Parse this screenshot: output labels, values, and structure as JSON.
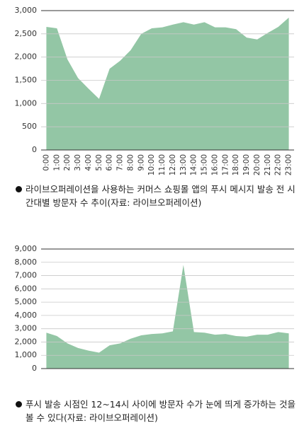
{
  "chart_data": [
    {
      "type": "area",
      "color": "#93c6a5",
      "categories": [
        "0:00",
        "1:00",
        "2:00",
        "3:00",
        "4:00",
        "5:00",
        "6:00",
        "7:00",
        "8:00",
        "9:00",
        "10:00",
        "11:00",
        "12:00",
        "13:00",
        "14:00",
        "15:00",
        "16:00",
        "17:00",
        "18:00",
        "19:00",
        "20:00",
        "21:00",
        "22:00",
        "23:00"
      ],
      "values": [
        2650,
        2620,
        1950,
        1550,
        1320,
        1100,
        1750,
        1920,
        2150,
        2500,
        2620,
        2640,
        2700,
        2750,
        2700,
        2750,
        2640,
        2640,
        2600,
        2420,
        2380,
        2520,
        2650,
        2850
      ],
      "ylim": [
        0,
        3000
      ],
      "yticks": [
        0,
        500,
        {
          "value": 1000,
          "label": "1,000"
        },
        {
          "value": 1500,
          "label": "1,500"
        },
        {
          "value": 2000,
          "label": "2,000"
        },
        {
          "value": 2500,
          "label": "2,500"
        },
        {
          "value": 3000,
          "label": "3,000"
        }
      ],
      "grid": true,
      "caption": "라이브오퍼레이션을 사용하는 커머스 쇼핑몰 앱의 푸시 메시지 발송 전 시간대별 방문자 수 추이(자료: 라이브오퍼레이션)"
    },
    {
      "type": "area",
      "color": "#93c6a5",
      "values": [
        2700,
        2450,
        1900,
        1550,
        1350,
        1200,
        1750,
        1900,
        2250,
        2500,
        2600,
        2650,
        2800,
        7800,
        2750,
        2700,
        2550,
        2600,
        2450,
        2400,
        2550,
        2550,
        2750,
        2650
      ],
      "ylim": [
        0,
        9000
      ],
      "yticks": [
        0,
        {
          "value": 1000,
          "label": "1,000"
        },
        {
          "value": 2000,
          "label": "2,000"
        },
        {
          "value": 3000,
          "label": "3,000"
        },
        {
          "value": 4000,
          "label": "4,000"
        },
        {
          "value": 5000,
          "label": "5,000"
        },
        {
          "value": 6000,
          "label": "6,000"
        },
        {
          "value": 7000,
          "label": "7,000"
        },
        {
          "value": 8000,
          "label": "8,000"
        },
        {
          "value": 9000,
          "label": "9,000"
        }
      ],
      "grid": true,
      "caption": "푸시 발송 시점인 12~14시 사이에 방문자 수가 눈에 띄게 증가하는 것을 볼 수 있다(자료: 라이브오퍼레이션)"
    }
  ]
}
